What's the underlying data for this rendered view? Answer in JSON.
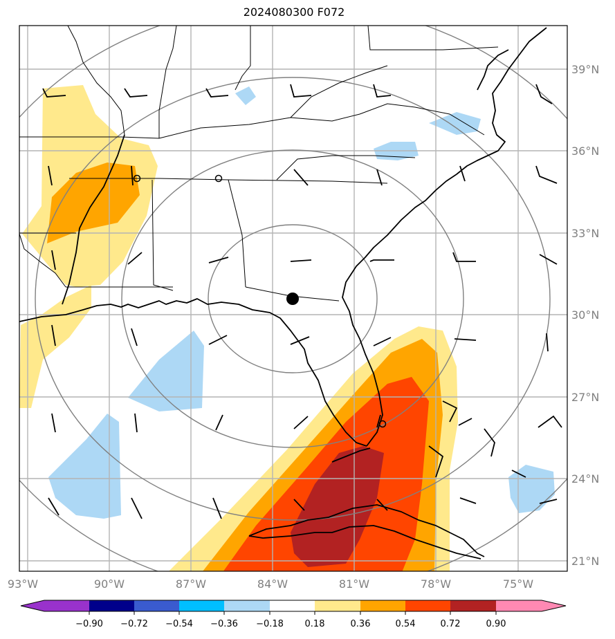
{
  "title": "2024080300 F072",
  "map": {
    "lon_labels": [
      "93°W",
      "90°W",
      "87°W",
      "84°W",
      "81°W",
      "78°W",
      "75°W"
    ],
    "lat_labels": [
      "39°N",
      "36°N",
      "33°N",
      "30°N",
      "27°N",
      "24°N",
      "21°N"
    ],
    "center_marker": "filled-circle",
    "range_rings": 4,
    "colors": {
      "coast": "#000000",
      "grid": "#b4b4b4",
      "ring": "#808080"
    }
  },
  "colorbar": {
    "levels": [
      "−0.90",
      "−0.72",
      "−0.54",
      "−0.36",
      "−0.18",
      "0.18",
      "0.36",
      "0.54",
      "0.72",
      "0.90"
    ],
    "colors": [
      "#9932cc",
      "#00008b",
      "#3a5bcf",
      "#00bfff",
      "#add8f5",
      "#ffffff",
      "#ffe98c",
      "#ffa500",
      "#ff4500",
      "#b22222",
      "#ff89b3"
    ]
  },
  "chart_data": {
    "type": "heatmap",
    "title": "2024080300 F072",
    "x_ticks": [
      "93°W",
      "90°W",
      "87°W",
      "84°W",
      "81°W",
      "78°W",
      "75°W"
    ],
    "y_ticks": [
      "39°N",
      "36°N",
      "33°N",
      "30°N",
      "27°N",
      "24°N",
      "21°N"
    ],
    "xlim": [
      -93,
      -73.3
    ],
    "ylim": [
      20.6,
      40.5
    ],
    "legend": "bottom colorbar",
    "grid": true
  }
}
